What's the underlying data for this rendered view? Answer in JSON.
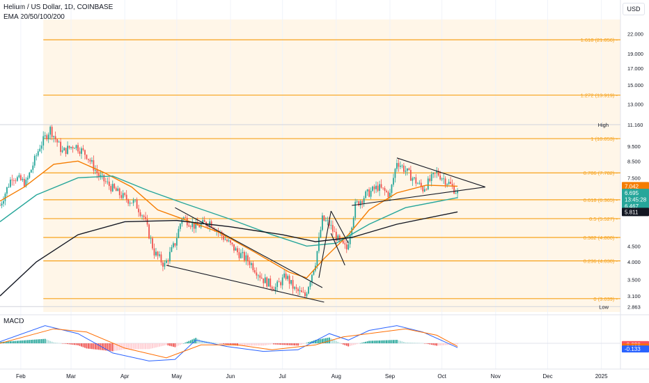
{
  "header": {
    "title": "Helium / US Dollar, 1D, COINBASE",
    "indicator": "EMA 20/50/100/200",
    "currency": "USD",
    "macd_label": "MACD"
  },
  "colors": {
    "up": "#26a69a",
    "down": "#ef5350",
    "fib": "#f7a21b",
    "ema20": "#f57c00",
    "ema50": "#26a69a",
    "ema100": "#787b86",
    "ema200": "#131722",
    "macd_line": "#2962ff",
    "signal_line": "#ff6d00",
    "fib_zone": "#fff6e8"
  },
  "chart_data": [
    {
      "type": "candlestick",
      "title": "Helium / US Dollar, 1D, COINBASE",
      "y_scale": "log",
      "ylim": [
        2.75,
        24.5
      ],
      "x_range": [
        "2024-01-20",
        "2025-01-12"
      ],
      "x_tick_labels": [
        "Feb",
        "Mar",
        "Apr",
        "May",
        "Jun",
        "Jul",
        "Aug",
        "Sep",
        "Oct",
        "Nov",
        "Dec",
        "2025"
      ],
      "y_tick_labels": [
        "22.000",
        "19.000",
        "17.000",
        "15.000",
        "13.000",
        "11.160",
        "9.500",
        "8.500",
        "7.500",
        "6.695",
        "6.467",
        "5.811",
        "4.500",
        "4.000",
        "3.500",
        "3.100",
        "2.863"
      ],
      "ohlc_path": [
        [
          "2024-01-20",
          6.1
        ],
        [
          "2024-01-27",
          7.6
        ],
        [
          "2024-02-04",
          7.2
        ],
        [
          "2024-02-12",
          9.5
        ],
        [
          "2024-02-18",
          10.8
        ],
        [
          "2024-02-25",
          9.1
        ],
        [
          "2024-03-03",
          9.6
        ],
        [
          "2024-03-10",
          8.9
        ],
        [
          "2024-03-17",
          7.6
        ],
        [
          "2024-03-24",
          7.0
        ],
        [
          "2024-03-31",
          6.5
        ],
        [
          "2024-04-07",
          6.2
        ],
        [
          "2024-04-12",
          5.6
        ],
        [
          "2024-04-18",
          4.3
        ],
        [
          "2024-04-24",
          3.9
        ],
        [
          "2024-04-30",
          4.6
        ],
        [
          "2024-05-04",
          5.6
        ],
        [
          "2024-05-12",
          5.2
        ],
        [
          "2024-05-20",
          5.4
        ],
        [
          "2024-05-28",
          4.8
        ],
        [
          "2024-06-05",
          4.3
        ],
        [
          "2024-06-12",
          4.0
        ],
        [
          "2024-06-20",
          3.5
        ],
        [
          "2024-06-27",
          3.3
        ],
        [
          "2024-07-03",
          3.6
        ],
        [
          "2024-07-08",
          3.25
        ],
        [
          "2024-07-14",
          3.1
        ],
        [
          "2024-07-20",
          4.0
        ],
        [
          "2024-07-24",
          5.5
        ],
        [
          "2024-07-28",
          5.3
        ],
        [
          "2024-08-03",
          4.6
        ],
        [
          "2024-08-07",
          4.4
        ],
        [
          "2024-08-12",
          6.1
        ],
        [
          "2024-08-18",
          6.6
        ],
        [
          "2024-08-25",
          7.0
        ],
        [
          "2024-09-01",
          6.6
        ],
        [
          "2024-09-05",
          8.5
        ],
        [
          "2024-09-12",
          7.7
        ],
        [
          "2024-09-20",
          6.9
        ],
        [
          "2024-09-28",
          7.8
        ],
        [
          "2024-10-05",
          7.2
        ],
        [
          "2024-10-10",
          6.7
        ]
      ],
      "last_price": 6.695,
      "countdown": "13:45:28",
      "high": {
        "label": "High",
        "value": 11.16
      },
      "low": {
        "label": "Low",
        "value": 2.863
      },
      "fib_levels": [
        {
          "ratio": "0",
          "label": "0 (3.039)",
          "value": 3.039
        },
        {
          "ratio": "0.236",
          "label": "0.236 (4.030)",
          "value": 4.03
        },
        {
          "ratio": "0.382",
          "label": "0.382 (4.800)",
          "value": 4.8
        },
        {
          "ratio": "0.5",
          "label": "0.5 (5.527)",
          "value": 5.527
        },
        {
          "ratio": "0.618",
          "label": "0.618 (6.365)",
          "value": 6.365
        },
        {
          "ratio": "0.786",
          "label": "0.786 (7.782)",
          "value": 7.782
        },
        {
          "ratio": "1",
          "label": "1 (10.053)",
          "value": 10.053
        },
        {
          "ratio": "1.272",
          "label": "1.272 (13.919)",
          "value": 13.919
        },
        {
          "ratio": "1.618",
          "label": "1.618 (21.056)",
          "value": 21.056
        }
      ],
      "fib_zone": [
        "2024-02-14",
        "2025-01-12"
      ],
      "ema": [
        {
          "name": "EMA 20",
          "last_value": 7.042,
          "points": [
            [
              "2024-01-20",
              6.3
            ],
            [
              "2024-02-03",
              7.0
            ],
            [
              "2024-02-20",
              8.3
            ],
            [
              "2024-03-05",
              8.5
            ],
            [
              "2024-03-20",
              7.8
            ],
            [
              "2024-04-05",
              7.0
            ],
            [
              "2024-04-20",
              5.9
            ],
            [
              "2024-05-05",
              5.5
            ],
            [
              "2024-05-25",
              5.0
            ],
            [
              "2024-06-15",
              4.3
            ],
            [
              "2024-07-05",
              3.7
            ],
            [
              "2024-07-15",
              3.55
            ],
            [
              "2024-07-25",
              4.1
            ],
            [
              "2024-08-08",
              4.9
            ],
            [
              "2024-08-20",
              5.9
            ],
            [
              "2024-09-05",
              6.7
            ],
            [
              "2024-09-22",
              7.1
            ],
            [
              "2024-10-10",
              7.042
            ]
          ]
        },
        {
          "name": "EMA 50",
          "last_value": 6.467,
          "points": [
            [
              "2024-01-20",
              5.4
            ],
            [
              "2024-02-10",
              6.6
            ],
            [
              "2024-03-05",
              7.5
            ],
            [
              "2024-03-25",
              7.6
            ],
            [
              "2024-04-15",
              6.8
            ],
            [
              "2024-05-05",
              6.2
            ],
            [
              "2024-06-01",
              5.5
            ],
            [
              "2024-06-25",
              4.9
            ],
            [
              "2024-07-15",
              4.5
            ],
            [
              "2024-08-01",
              4.6
            ],
            [
              "2024-08-20",
              5.3
            ],
            [
              "2024-09-10",
              6.0
            ],
            [
              "2024-10-10",
              6.467
            ]
          ]
        },
        {
          "name": "EMA 200",
          "last_value": 5.811,
          "points": [
            [
              "2024-01-20",
              3.1
            ],
            [
              "2024-02-10",
              4.0
            ],
            [
              "2024-03-05",
              4.9
            ],
            [
              "2024-04-01",
              5.4
            ],
            [
              "2024-05-01",
              5.45
            ],
            [
              "2024-06-01",
              5.2
            ],
            [
              "2024-07-01",
              4.9
            ],
            [
              "2024-07-20",
              4.65
            ],
            [
              "2024-08-10",
              4.8
            ],
            [
              "2024-09-05",
              5.3
            ],
            [
              "2024-10-10",
              5.811
            ]
          ]
        }
      ],
      "trendlines": [
        {
          "from": [
            "2024-04-30",
            6.0
          ],
          "to": [
            "2024-07-24",
            3.3
          ]
        },
        {
          "from": [
            "2024-04-25",
            3.9
          ],
          "to": [
            "2024-07-25",
            2.96
          ]
        },
        {
          "from": [
            "2024-09-05",
            8.7
          ],
          "to": [
            "2024-10-26",
            7.0
          ]
        },
        {
          "from": [
            "2024-08-10",
            6.1
          ],
          "to": [
            "2024-10-26",
            7.0
          ]
        },
        {
          "from": [
            "2024-07-22",
            3.55
          ],
          "to": [
            "2024-07-29",
            5.85
          ]
        },
        {
          "from": [
            "2024-07-29",
            5.85
          ],
          "to": [
            "2024-08-08",
            4.6
          ]
        },
        {
          "from": [
            "2024-07-29",
            4.95
          ],
          "to": [
            "2024-08-06",
            3.9
          ]
        }
      ]
    },
    {
      "type": "line",
      "title": "MACD",
      "series": [
        {
          "name": "MACD",
          "last_value": -0.133,
          "points": [
            [
              "2024-01-20",
              0.05
            ],
            [
              "2024-02-15",
              0.55
            ],
            [
              "2024-03-05",
              0.3
            ],
            [
              "2024-03-25",
              -0.3
            ],
            [
              "2024-04-15",
              -0.55
            ],
            [
              "2024-04-30",
              -0.5
            ],
            [
              "2024-05-12",
              0.1
            ],
            [
              "2024-05-30",
              -0.1
            ],
            [
              "2024-06-20",
              -0.25
            ],
            [
              "2024-07-10",
              -0.2
            ],
            [
              "2024-07-28",
              0.3
            ],
            [
              "2024-08-08",
              0.1
            ],
            [
              "2024-08-20",
              0.4
            ],
            [
              "2024-09-05",
              0.55
            ],
            [
              "2024-09-20",
              0.35
            ],
            [
              "2024-10-10",
              -0.133
            ]
          ]
        },
        {
          "name": "Signal",
          "last_value": -0.095,
          "points": [
            [
              "2024-01-20",
              0.0
            ],
            [
              "2024-02-20",
              0.45
            ],
            [
              "2024-03-10",
              0.35
            ],
            [
              "2024-04-01",
              -0.15
            ],
            [
              "2024-04-25",
              -0.45
            ],
            [
              "2024-05-15",
              -0.05
            ],
            [
              "2024-06-05",
              -0.05
            ],
            [
              "2024-06-25",
              -0.2
            ],
            [
              "2024-07-20",
              -0.05
            ],
            [
              "2024-08-05",
              0.2
            ],
            [
              "2024-09-10",
              0.45
            ],
            [
              "2024-09-28",
              0.25
            ],
            [
              "2024-10-10",
              -0.095
            ]
          ]
        }
      ],
      "histogram_last": -0.038,
      "value_labels": [
        "-0.038",
        "-0.095",
        "-0.133"
      ]
    }
  ]
}
